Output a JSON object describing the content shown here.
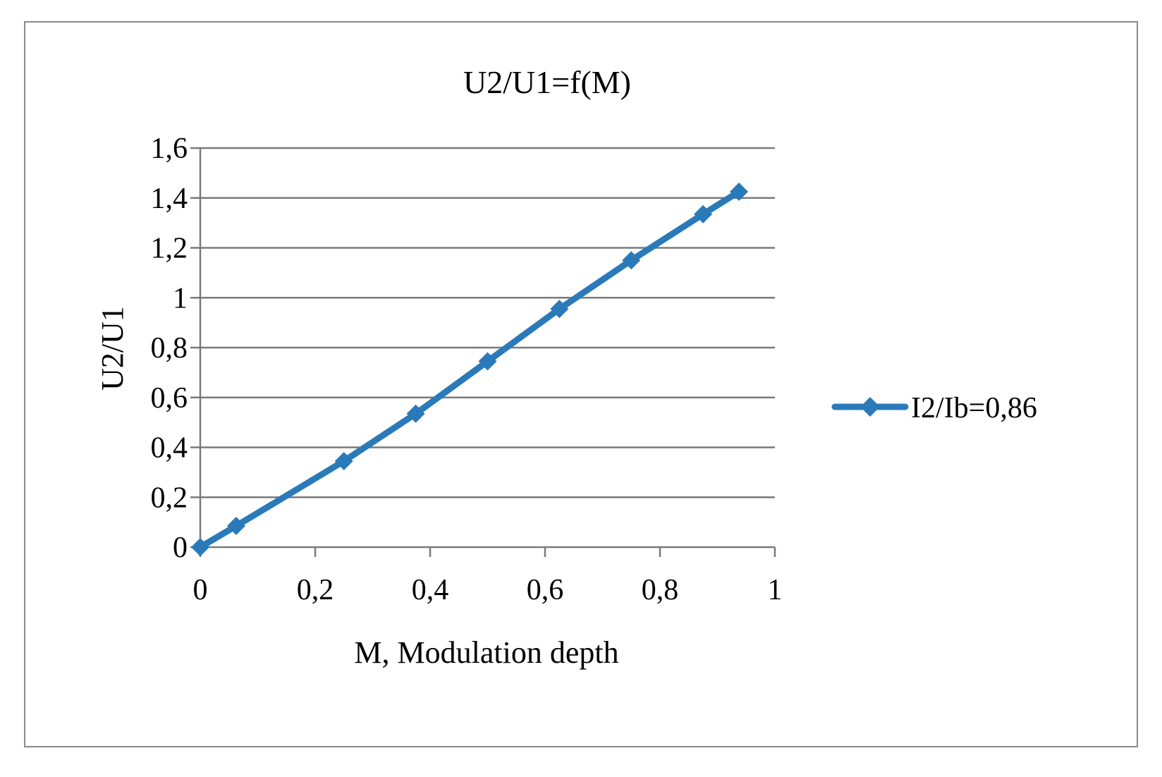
{
  "chart_data": {
    "type": "line",
    "title": "U2/U1=f(M)",
    "xlabel": "M, Modulation depth",
    "ylabel": "U2/U1",
    "xlim": [
      0,
      1
    ],
    "ylim": [
      0,
      1.6
    ],
    "x_ticks": [
      0,
      0.2,
      0.4,
      0.6,
      0.8,
      1
    ],
    "x_tick_labels": [
      "0",
      "0,2",
      "0,4",
      "0,6",
      "0,8",
      "1"
    ],
    "y_ticks": [
      0,
      0.2,
      0.4,
      0.6,
      0.8,
      1,
      1.2,
      1.4,
      1.6
    ],
    "y_tick_labels": [
      "0",
      "0,2",
      "0,4",
      "0,6",
      "0,8",
      "1",
      "1,2",
      "1,4",
      "1,6"
    ],
    "grid": "horizontal",
    "legend_position": "right",
    "series": [
      {
        "name": "I2/Ib=0,86",
        "color": "#2a7ab9",
        "marker": "diamond",
        "x": [
          0,
          0.0625,
          0.25,
          0.375,
          0.5,
          0.625,
          0.75,
          0.875,
          0.9375
        ],
        "y": [
          0,
          0.085,
          0.345,
          0.535,
          0.745,
          0.955,
          1.15,
          1.335,
          1.425
        ]
      }
    ]
  }
}
